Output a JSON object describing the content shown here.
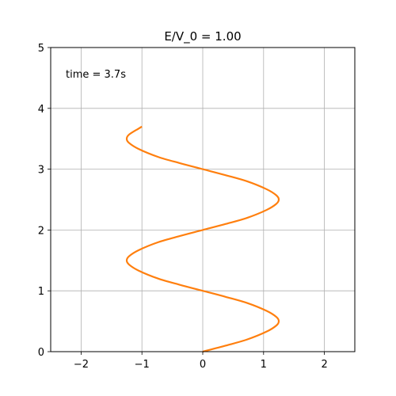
{
  "chart_data": {
    "type": "line",
    "title": "E/V_0 = 1.00",
    "xlabel": "",
    "ylabel": "",
    "xlim": [
      -2.5,
      2.5
    ],
    "ylim": [
      0,
      5
    ],
    "x_ticks": [
      -2,
      -1,
      0,
      1,
      2
    ],
    "x_tick_labels": [
      "−2",
      "−1",
      "0",
      "1",
      "2"
    ],
    "y_ticks": [
      0,
      1,
      2,
      3,
      4,
      5
    ],
    "y_tick_labels": [
      "0",
      "1",
      "2",
      "3",
      "4",
      "5"
    ],
    "grid": true,
    "annotation": "time = 3.7s",
    "series": [
      {
        "color": "#ff7f0e",
        "points": [
          [
            0.0,
            0.0
          ],
          [
            0.38,
            0.1
          ],
          [
            0.73,
            0.2
          ],
          [
            1.05,
            0.33
          ],
          [
            1.21,
            0.43
          ],
          [
            1.25,
            0.5
          ],
          [
            1.21,
            0.57
          ],
          [
            1.05,
            0.67
          ],
          [
            0.73,
            0.8
          ],
          [
            0.38,
            0.9
          ],
          [
            0.0,
            1.0
          ],
          [
            -0.38,
            1.1
          ],
          [
            -0.73,
            1.2
          ],
          [
            -1.05,
            1.33
          ],
          [
            -1.21,
            1.43
          ],
          [
            -1.25,
            1.5
          ],
          [
            -1.21,
            1.57
          ],
          [
            -1.05,
            1.67
          ],
          [
            -0.73,
            1.8
          ],
          [
            -0.38,
            1.9
          ],
          [
            0.0,
            2.0
          ],
          [
            0.38,
            2.1
          ],
          [
            0.73,
            2.2
          ],
          [
            1.05,
            2.33
          ],
          [
            1.21,
            2.43
          ],
          [
            1.25,
            2.5
          ],
          [
            1.21,
            2.57
          ],
          [
            1.05,
            2.67
          ],
          [
            0.73,
            2.8
          ],
          [
            0.38,
            2.9
          ],
          [
            0.0,
            3.0
          ],
          [
            -0.38,
            3.1
          ],
          [
            -0.73,
            3.2
          ],
          [
            -1.05,
            3.33
          ],
          [
            -1.21,
            3.43
          ],
          [
            -1.25,
            3.5
          ],
          [
            -1.21,
            3.57
          ],
          [
            -1.05,
            3.67
          ],
          [
            -1.0,
            3.7
          ]
        ]
      }
    ]
  }
}
